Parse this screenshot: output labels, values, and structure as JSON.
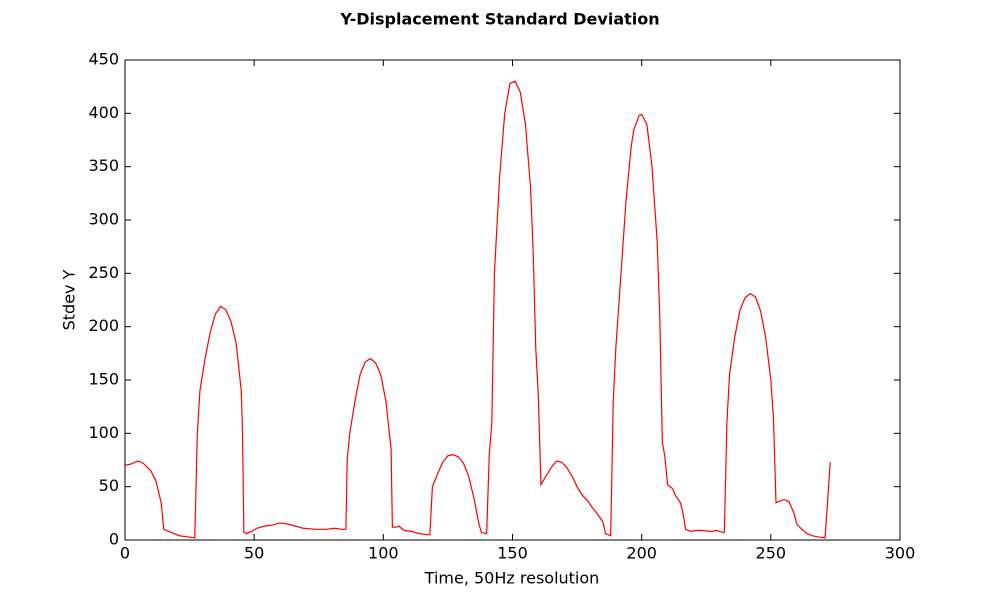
{
  "chart_data": {
    "type": "line",
    "title": "Y-Displacement Standard Deviation",
    "x_label": "Time, 50Hz resolution",
    "y_label": "Stdev Y",
    "color": "#ff0000",
    "x": [
      0,
      2,
      5,
      7,
      10,
      12,
      14,
      15,
      17,
      19,
      21,
      24,
      27,
      28,
      29,
      31,
      33,
      35,
      37,
      39,
      41,
      43,
      45,
      45.5,
      46,
      47,
      49,
      51,
      54,
      57,
      60,
      63,
      66,
      69,
      74,
      78,
      81,
      84,
      85.5,
      86,
      87,
      89,
      91,
      93,
      95,
      97,
      99,
      101,
      103,
      103.5,
      105,
      106,
      108,
      111,
      114,
      117,
      118,
      119,
      121,
      123,
      125,
      127,
      129,
      131,
      133,
      135,
      137,
      138,
      140,
      141,
      142,
      143,
      145,
      147,
      149,
      151,
      153,
      155,
      157,
      158,
      159,
      160,
      161,
      163,
      165,
      167,
      169,
      171,
      173,
      175,
      177,
      179,
      181,
      183,
      185,
      186,
      188,
      189,
      190,
      192,
      194,
      196,
      197,
      199,
      200,
      202,
      204,
      206,
      207,
      208,
      209,
      210,
      212,
      213,
      215,
      216,
      217,
      219,
      221,
      223,
      227,
      229,
      230,
      232,
      233,
      234,
      236,
      238,
      240,
      242,
      244,
      246,
      248,
      250,
      251,
      252,
      254,
      255,
      257,
      259,
      260,
      262,
      264,
      266,
      268,
      271,
      273
    ],
    "values": [
      70,
      71,
      74,
      72,
      65,
      55,
      35,
      10,
      8,
      6,
      4,
      3,
      2,
      100,
      140,
      170,
      195,
      212,
      219,
      216,
      205,
      185,
      140,
      100,
      7,
      6,
      8,
      11,
      13,
      14,
      16,
      15,
      13,
      11,
      10,
      10,
      11,
      10,
      10,
      75,
      100,
      130,
      155,
      167,
      170,
      166,
      155,
      130,
      85,
      12,
      12,
      13,
      9,
      8,
      6,
      5,
      5,
      50,
      62,
      73,
      79,
      80,
      78,
      72,
      60,
      40,
      15,
      7,
      6,
      80,
      110,
      250,
      340,
      400,
      428,
      430,
      420,
      390,
      330,
      270,
      180,
      135,
      52,
      60,
      68,
      74,
      73,
      68,
      60,
      50,
      42,
      37,
      30,
      24,
      17,
      6,
      4,
      130,
      180,
      250,
      320,
      370,
      385,
      398,
      399,
      390,
      350,
      280,
      210,
      92,
      78,
      52,
      48,
      42,
      35,
      25,
      10,
      8,
      9,
      9,
      8,
      9,
      8,
      7,
      110,
      155,
      190,
      215,
      227,
      231,
      228,
      215,
      190,
      150,
      115,
      35,
      37,
      38,
      36,
      25,
      15,
      10,
      6,
      4,
      3,
      2,
      73
    ],
    "xlim": [
      0,
      300
    ],
    "ylim": [
      0,
      450
    ],
    "xticks": [
      0,
      50,
      100,
      150,
      200,
      250,
      300
    ],
    "yticks": [
      0,
      50,
      100,
      150,
      200,
      250,
      300,
      350,
      400,
      450
    ],
    "grid": false
  }
}
